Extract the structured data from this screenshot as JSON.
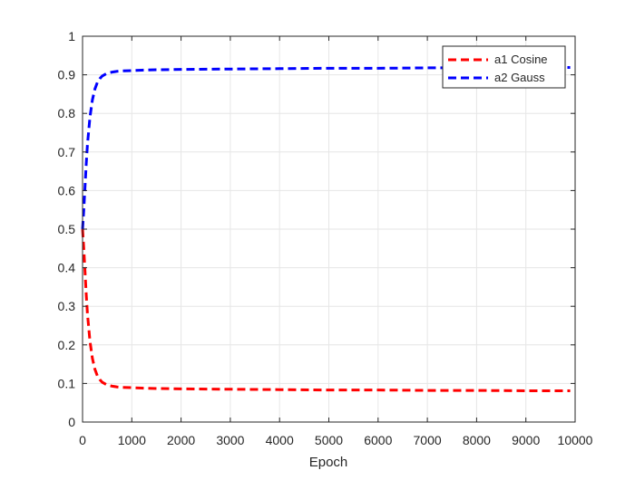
{
  "chart_data": {
    "type": "line",
    "title": "",
    "xlabel": "Epoch",
    "ylabel": "",
    "xlim": [
      0,
      10000
    ],
    "ylim": [
      0,
      1
    ],
    "xticks": [
      0,
      1000,
      2000,
      3000,
      4000,
      5000,
      6000,
      7000,
      8000,
      9000,
      10000
    ],
    "yticks": [
      0,
      0.1,
      0.2,
      0.3,
      0.4,
      0.5,
      0.6,
      0.7,
      0.8,
      0.9,
      1
    ],
    "grid": true,
    "legend_position": "top-right",
    "series": [
      {
        "name": "a1 Cosine",
        "color": "#ff0000",
        "line_style": "dashed",
        "x": [
          0,
          25,
          50,
          75,
          100,
          150,
          200,
          250,
          300,
          350,
          400,
          500,
          600,
          700,
          800,
          1000,
          1200,
          1500,
          2000,
          3000,
          4000,
          5000,
          6000,
          7000,
          8000,
          9000,
          9900
        ],
        "y": [
          0.5,
          0.45,
          0.39,
          0.33,
          0.28,
          0.21,
          0.165,
          0.137,
          0.12,
          0.11,
          0.103,
          0.096,
          0.093,
          0.091,
          0.09,
          0.089,
          0.088,
          0.087,
          0.086,
          0.085,
          0.084,
          0.083,
          0.083,
          0.082,
          0.082,
          0.081,
          0.081
        ]
      },
      {
        "name": "a2 Gauss",
        "color": "#0000ff",
        "line_style": "dashed",
        "x": [
          0,
          25,
          50,
          75,
          100,
          150,
          200,
          250,
          300,
          350,
          400,
          500,
          600,
          700,
          800,
          1000,
          1200,
          1500,
          2000,
          3000,
          4000,
          5000,
          6000,
          7000,
          8000,
          9000,
          9900
        ],
        "y": [
          0.5,
          0.55,
          0.61,
          0.67,
          0.72,
          0.79,
          0.835,
          0.863,
          0.88,
          0.89,
          0.897,
          0.904,
          0.907,
          0.909,
          0.91,
          0.911,
          0.912,
          0.913,
          0.914,
          0.915,
          0.916,
          0.917,
          0.917,
          0.918,
          0.918,
          0.919,
          0.919
        ]
      }
    ]
  }
}
